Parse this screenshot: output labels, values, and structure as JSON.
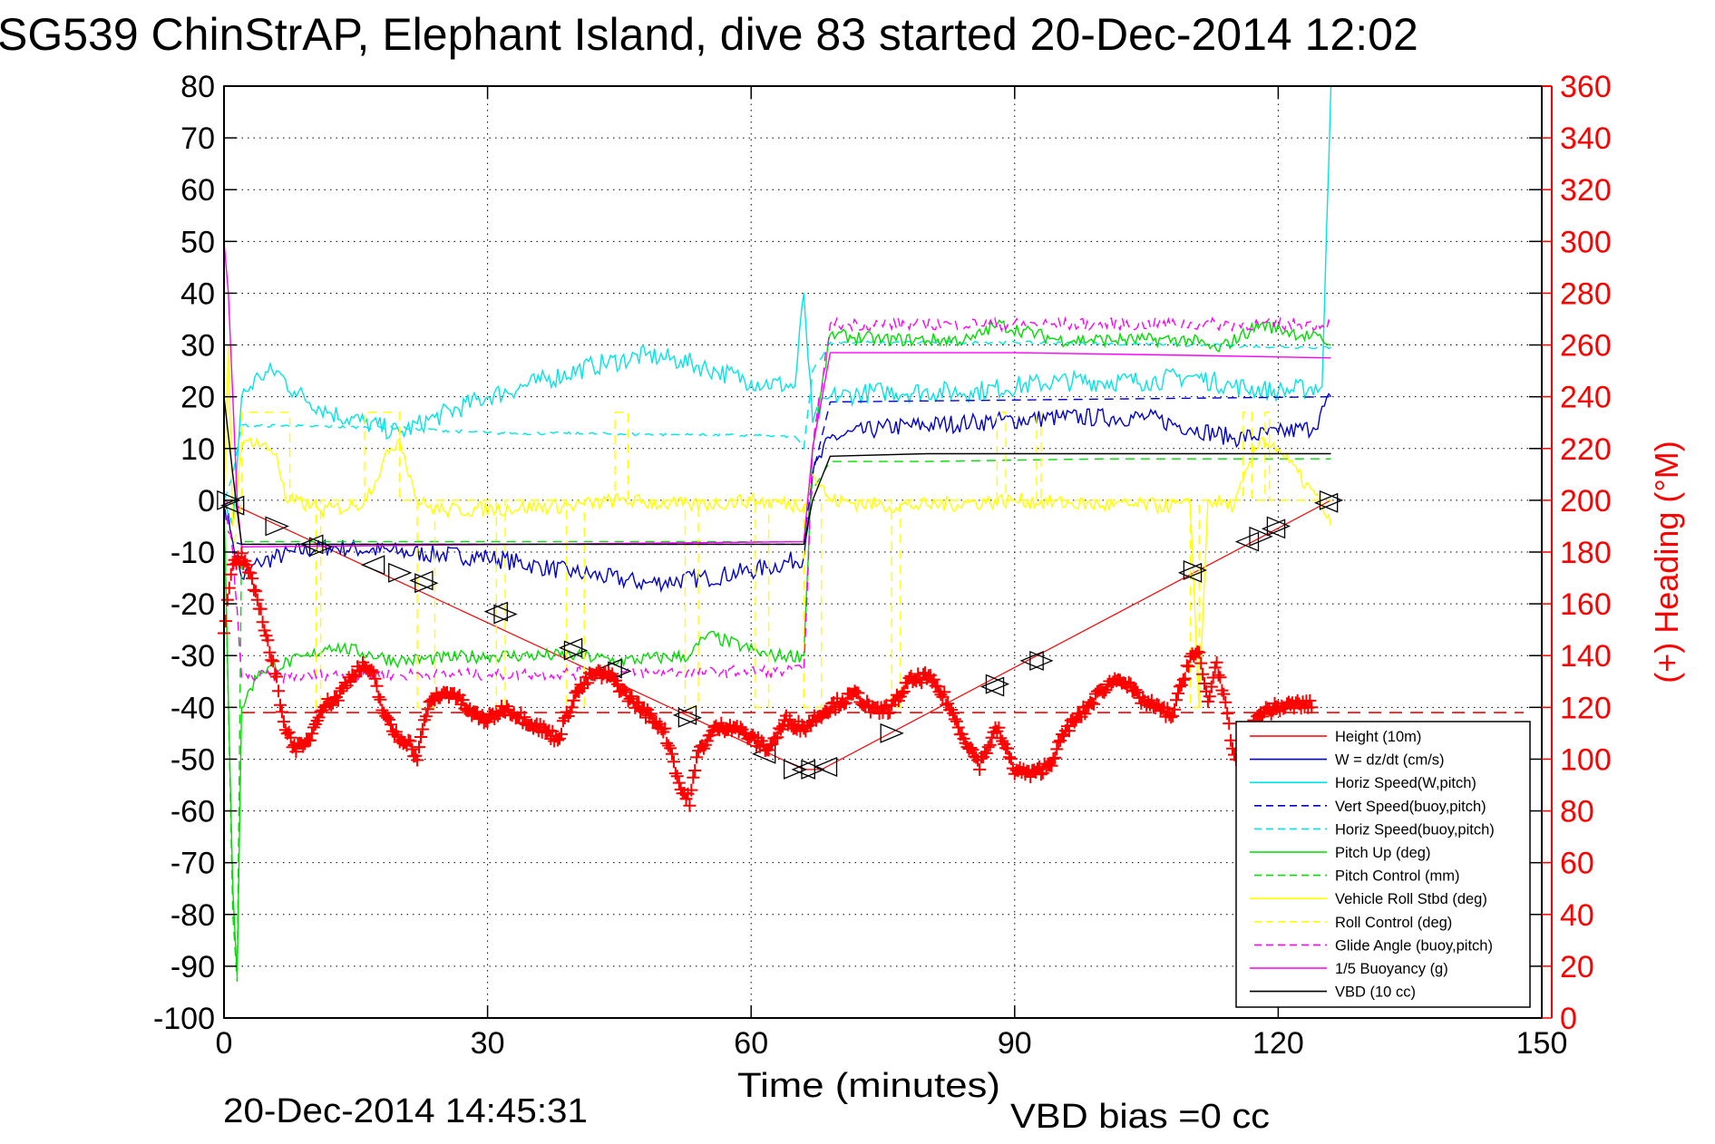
{
  "chart_data": {
    "type": "line",
    "title": "SG539 ChinStrAP, Elephant Island, dive 83 started 20-Dec-2014 12:02",
    "xlabel": "Time (minutes)",
    "ylabel_left": "",
    "ylabel_right": "(+) Heading (°M)",
    "xlim": [
      0,
      150
    ],
    "ylim_left": [
      -100,
      80
    ],
    "ylim_right": [
      0,
      360
    ],
    "x_ticks": [
      "0",
      "30",
      "60",
      "90",
      "120",
      "150"
    ],
    "x_tick_values": [
      0,
      30,
      60,
      90,
      120,
      150
    ],
    "y_left_ticks": [
      "80",
      "70",
      "60",
      "50",
      "40",
      "30",
      "20",
      "10",
      "0",
      "-10",
      "-20",
      "-30",
      "-40",
      "-50",
      "-60",
      "-70",
      "-80",
      "-90",
      "-100"
    ],
    "y_left_tick_values": [
      80,
      70,
      60,
      50,
      40,
      30,
      20,
      10,
      0,
      -10,
      -20,
      -30,
      -40,
      -50,
      -60,
      -70,
      -80,
      -90,
      -100
    ],
    "y_right_ticks": [
      "360",
      "340",
      "320",
      "300",
      "280",
      "260",
      "240",
      "220",
      "200",
      "180",
      "160",
      "140",
      "120",
      "100",
      "80",
      "60",
      "40",
      "20",
      "0"
    ],
    "y_right_tick_values": [
      360,
      340,
      320,
      300,
      280,
      260,
      240,
      220,
      200,
      180,
      160,
      140,
      120,
      100,
      80,
      60,
      40,
      20,
      0
    ],
    "grid": true,
    "legend_position": "bottom-right",
    "footer_left": "20-Dec-2014 14:45:31",
    "footer_right": "VBD bias =0 cc",
    "colors": {
      "red": "#ff0000",
      "blue": "#0000cc",
      "cyan": "#00e5e5",
      "green": "#00dd00",
      "yellow": "#ffff00",
      "magenta": "#ff00ff",
      "black": "#000000"
    },
    "series": [
      {
        "name": "Height (10m)",
        "color": "#ff0000",
        "style": "solid",
        "axis": "left",
        "x": [
          0,
          66,
          68,
          126
        ],
        "y": [
          0,
          -52,
          -52,
          0
        ]
      },
      {
        "name": "W = dz/dt (cm/s)",
        "color": "#0000cc",
        "style": "solid",
        "axis": "left",
        "x": [
          0,
          1,
          2,
          4,
          8,
          12,
          20,
          30,
          40,
          48,
          55,
          62,
          66,
          67,
          69,
          75,
          85,
          95,
          105,
          110,
          115,
          120,
          124,
          126
        ],
        "y": [
          0,
          -8,
          -15,
          -12,
          -10,
          -9,
          -10,
          -11,
          -14,
          -16,
          -15,
          -13,
          -11,
          5,
          12,
          14,
          15,
          16,
          16,
          14,
          12,
          13,
          14,
          20
        ]
      },
      {
        "name": "Horiz Speed(W,pitch)",
        "color": "#00e5e5",
        "style": "solid",
        "axis": "left",
        "x": [
          0,
          1,
          2,
          4,
          6,
          8,
          12,
          16,
          20,
          24,
          30,
          36,
          42,
          48,
          52,
          56,
          60,
          65,
          66,
          67,
          69,
          75,
          85,
          95,
          105,
          110,
          115,
          120,
          125,
          126
        ],
        "y": [
          0,
          -5,
          20,
          24,
          25,
          21,
          17,
          15,
          13,
          16,
          20,
          23,
          26,
          28,
          27,
          25,
          23,
          22,
          40,
          15,
          20,
          21,
          21,
          23,
          23,
          24,
          22,
          21,
          22,
          80
        ]
      },
      {
        "name": "Vert Speed(buoy,pitch)",
        "color": "#0000cc",
        "style": "dashed",
        "axis": "left",
        "x": [
          0,
          1,
          2,
          66,
          67,
          69,
          126
        ],
        "y": [
          0,
          -8,
          -8.5,
          -8.5,
          5,
          19,
          20
        ]
      },
      {
        "name": "Horiz Speed(buoy,pitch)",
        "color": "#00e5e5",
        "style": "dashed",
        "axis": "left",
        "x": [
          0,
          1,
          2,
          20,
          30,
          45,
          60,
          65,
          66,
          67,
          69,
          90,
          110,
          126
        ],
        "y": [
          0,
          5,
          14.5,
          14,
          13,
          12.8,
          12.5,
          12.3,
          10,
          25,
          30.5,
          30.5,
          30,
          29.5
        ]
      },
      {
        "name": "Pitch Up (deg)",
        "color": "#00dd00",
        "style": "solid",
        "axis": "left",
        "x": [
          0,
          1,
          1.5,
          2,
          4,
          10,
          12,
          20,
          30,
          40,
          45,
          53,
          55,
          62,
          66,
          67,
          69,
          75,
          85,
          88,
          95,
          105,
          110,
          113,
          118,
          125,
          126
        ],
        "y": [
          0,
          -75,
          -92,
          -40,
          -33,
          -30,
          -28,
          -31,
          -30,
          -30,
          -31,
          -30,
          -26,
          -30,
          -30,
          10,
          32,
          31,
          31,
          34,
          31,
          31,
          31,
          29,
          34,
          31,
          30
        ]
      },
      {
        "name": "Pitch Control (mm)",
        "color": "#00dd00",
        "style": "dashed",
        "axis": "left",
        "x": [
          0,
          1,
          1.5,
          2,
          66,
          67,
          69,
          80,
          100,
          126
        ],
        "y": [
          0,
          -80,
          -93,
          -8,
          -8,
          2,
          7.5,
          7.5,
          8,
          8
        ]
      },
      {
        "name": "Vehicle Roll Stbd (deg)",
        "color": "#ffff00",
        "style": "solid",
        "axis": "left",
        "x": [
          0,
          0.5,
          1,
          2,
          3,
          6,
          7,
          10,
          11,
          15,
          16,
          19,
          20,
          22,
          23,
          25,
          40,
          45,
          53,
          60,
          66,
          67,
          69,
          75,
          80,
          90,
          100,
          110,
          111,
          112,
          115,
          118,
          120,
          125,
          126
        ],
        "y": [
          0,
          30,
          -5,
          10,
          12,
          9,
          0,
          -1,
          -2,
          -1,
          0,
          10,
          12,
          0,
          -1,
          -2,
          -1,
          0,
          -1,
          0,
          -1,
          5,
          0,
          -1,
          -1,
          0,
          -1,
          -1,
          -40,
          0,
          -1,
          12,
          10,
          -1,
          -5
        ]
      },
      {
        "name": "Roll Control (deg)",
        "color": "#ffff00",
        "style": "dashed",
        "axis": "left",
        "x": [
          0,
          1,
          2,
          2,
          7.5,
          7.5,
          10.5,
          10.5,
          11,
          11,
          16,
          16,
          20,
          20,
          22,
          22,
          24,
          24,
          31,
          31,
          32,
          32,
          39,
          39,
          41,
          41,
          44.5,
          44.5,
          46,
          46,
          52.5,
          52.5,
          54,
          54,
          60.5,
          60.5,
          62,
          62,
          66,
          66,
          68,
          68,
          76,
          76,
          77,
          77,
          88,
          88,
          89,
          89,
          92.5,
          92.5,
          93,
          93,
          110,
          110,
          111,
          111,
          116,
          116,
          117,
          117,
          118.5,
          118.5,
          119,
          119,
          126
        ],
        "y": [
          0,
          -10,
          0,
          17,
          17,
          0,
          0,
          -40,
          -40,
          0,
          0,
          17,
          17,
          0,
          0,
          -40,
          -40,
          0,
          0,
          -40,
          -40,
          0,
          0,
          -40,
          -40,
          0,
          0,
          17,
          17,
          0,
          0,
          -40,
          -40,
          0,
          0,
          -40,
          -40,
          0,
          0,
          -40,
          -40,
          0,
          0,
          -40,
          -40,
          0,
          0,
          17,
          17,
          0,
          0,
          17,
          17,
          0,
          0,
          -40,
          -40,
          0,
          0,
          17,
          17,
          0,
          0,
          17,
          17,
          0,
          0
        ]
      },
      {
        "name": "Glide Angle (buoy,pitch)",
        "color": "#ff00ff",
        "style": "dashed",
        "axis": "left",
        "x": [
          0,
          1,
          2,
          66,
          67,
          69,
          126
        ],
        "y": [
          0,
          -10,
          -34,
          -33,
          10,
          34,
          34
        ]
      },
      {
        "name": "1/5 Buoyancy (g)",
        "color": "#ff00ff",
        "style": "solid",
        "axis": "left",
        "x": [
          0,
          0.5,
          1,
          1.5,
          2,
          66,
          67,
          69,
          90,
          110,
          126
        ],
        "y": [
          50,
          40,
          20,
          0,
          -9,
          -8,
          10,
          28.5,
          28.5,
          28,
          27.5
        ]
      },
      {
        "name": "VBD (10 cc)",
        "color": "#000000",
        "style": "solid",
        "axis": "left",
        "x": [
          0,
          1,
          1.5,
          2,
          66,
          67,
          69,
          80,
          126
        ],
        "y": [
          20,
          5,
          -2,
          -8.5,
          -8.5,
          0,
          8.5,
          9,
          9
        ]
      }
    ],
    "heading": {
      "name": "Heading",
      "color": "#ff0000",
      "marker": "+",
      "axis": "right",
      "x": [
        0,
        1,
        2,
        3,
        4,
        5,
        6,
        7,
        8,
        9,
        10,
        11,
        12,
        13,
        14,
        15,
        16,
        17,
        18,
        19,
        20,
        21,
        22,
        23,
        24,
        26,
        28,
        30,
        32,
        34,
        36,
        38,
        40,
        42,
        44,
        46,
        48,
        50,
        51,
        52,
        53,
        54,
        56,
        58,
        60,
        62,
        64,
        66,
        68,
        70,
        72,
        74,
        76,
        78,
        80,
        82,
        84,
        86,
        88,
        90,
        92,
        94,
        96,
        98,
        100,
        102,
        104,
        106,
        108,
        110,
        111,
        112,
        113,
        114,
        115,
        118,
        120,
        122,
        124
      ],
      "y": [
        150,
        175,
        178,
        170,
        160,
        145,
        130,
        112,
        105,
        104,
        110,
        120,
        122,
        124,
        130,
        134,
        136,
        132,
        120,
        112,
        108,
        107,
        100,
        118,
        124,
        126,
        118,
        115,
        120,
        116,
        112,
        108,
        125,
        133,
        132,
        124,
        118,
        112,
        102,
        88,
        84,
        103,
        112,
        113,
        108,
        104,
        115,
        112,
        118,
        122,
        125,
        118,
        120,
        130,
        132,
        124,
        110,
        98,
        112,
        96,
        94,
        98,
        112,
        119,
        127,
        132,
        124,
        120,
        117,
        140,
        140,
        122,
        138,
        120,
        100,
        118,
        120,
        121,
        121
      ]
    },
    "heading_mean": {
      "color": "#ff0000",
      "style": "dashed",
      "axis": "right",
      "value": 118
    },
    "triangle_markers": {
      "color": "#000000",
      "x": [
        0.5,
        1,
        6,
        10,
        11,
        17,
        20,
        22.5,
        23,
        31,
        32,
        39.5,
        40,
        44,
        45,
        52.5,
        53,
        61.5,
        65,
        66,
        67,
        68.5,
        76,
        87.5,
        88,
        92,
        93,
        110,
        110.5,
        116.5,
        118,
        119.5,
        120,
        125.5,
        126
      ],
      "y": [
        0,
        -1,
        -5,
        -8.5,
        -9,
        -12.5,
        -14,
        -15.5,
        -16,
        -21.5,
        -22,
        -28.5,
        -29,
        -32.5,
        -33,
        -41.5,
        -42,
        -49,
        -52,
        -52,
        -52,
        -51.5,
        -45,
        -36,
        -35.5,
        -31,
        -31,
        -14,
        -13.5,
        -8,
        -7,
        -5.5,
        -5,
        -0.5,
        0
      ]
    }
  }
}
